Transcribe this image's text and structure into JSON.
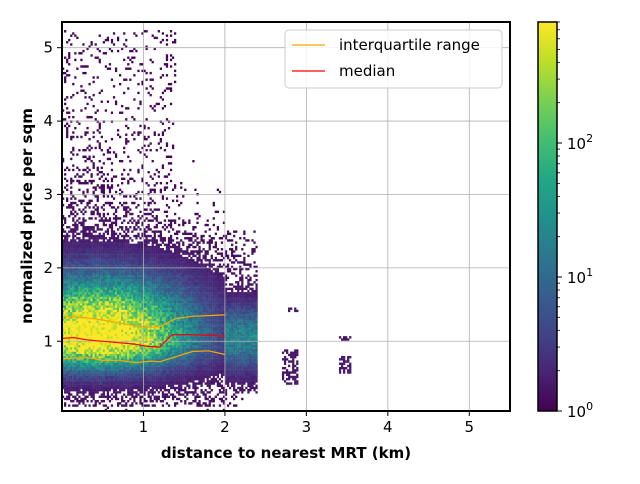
{
  "chart_data": {
    "type": "heatmap",
    "title": "",
    "xlabel": "distance to nearest MRT (km)",
    "ylabel": "normalized price per sqm",
    "xlim": [
      0.0,
      5.5
    ],
    "ylim": [
      0.05,
      5.35
    ],
    "x_ticks": [
      1,
      2,
      3,
      4,
      5
    ],
    "x_tick_labels": [
      "1",
      "2",
      "3",
      "4",
      "5"
    ],
    "y_ticks": [
      1,
      2,
      3,
      4,
      5
    ],
    "y_tick_labels": [
      "1",
      "2",
      "3",
      "4",
      "5"
    ],
    "grid": true,
    "legend_position": "top-right",
    "colormap": "viridis",
    "colorbar": {
      "scale": "log",
      "range": [
        1,
        800
      ],
      "ticks": [
        1,
        10,
        100
      ],
      "tick_labels": [
        "10",
        "10",
        "10"
      ],
      "tick_exponents": [
        "0",
        "1",
        "2"
      ]
    },
    "density_regions": [
      {
        "x_range": [
          0.0,
          2.0
        ],
        "y_range": [
          0.1,
          5.2
        ],
        "note": "main cloud, densest near y 0.8-1.4"
      },
      {
        "x_range": [
          2.0,
          2.4
        ],
        "y_range": [
          0.3,
          2.5
        ]
      },
      {
        "x_range": [
          2.7,
          2.9
        ],
        "y_range": [
          0.4,
          1.45
        ]
      },
      {
        "x_range": [
          3.4,
          3.55
        ],
        "y_range": [
          0.55,
          1.05
        ]
      }
    ],
    "series": [
      {
        "name": "interquartile range",
        "kind": "line",
        "color": "#ffa500",
        "lines": [
          {
            "x": [
              0.0,
              0.3,
              0.5,
              0.7,
              0.9,
              1.1,
              1.2,
              1.4,
              1.6,
              1.8,
              2.0
            ],
            "y": [
              1.34,
              1.32,
              1.29,
              1.25,
              1.21,
              1.19,
              1.2,
              1.31,
              1.34,
              1.35,
              1.36
            ]
          },
          {
            "x": [
              0.0,
              0.3,
              0.5,
              0.7,
              0.9,
              1.1,
              1.2,
              1.4,
              1.6,
              1.8,
              2.0
            ],
            "y": [
              0.76,
              0.78,
              0.74,
              0.74,
              0.71,
              0.73,
              0.72,
              0.79,
              0.86,
              0.87,
              0.82
            ]
          }
        ]
      },
      {
        "name": "median",
        "kind": "line",
        "color": "#ff0000",
        "lines": [
          {
            "x": [
              0.0,
              0.15,
              0.3,
              0.5,
              0.7,
              0.9,
              1.05,
              1.2,
              1.35,
              1.6,
              1.8,
              2.0
            ],
            "y": [
              1.04,
              1.05,
              1.02,
              1.0,
              0.98,
              0.96,
              0.93,
              0.92,
              1.09,
              1.09,
              1.08,
              1.07
            ]
          }
        ]
      }
    ]
  }
}
